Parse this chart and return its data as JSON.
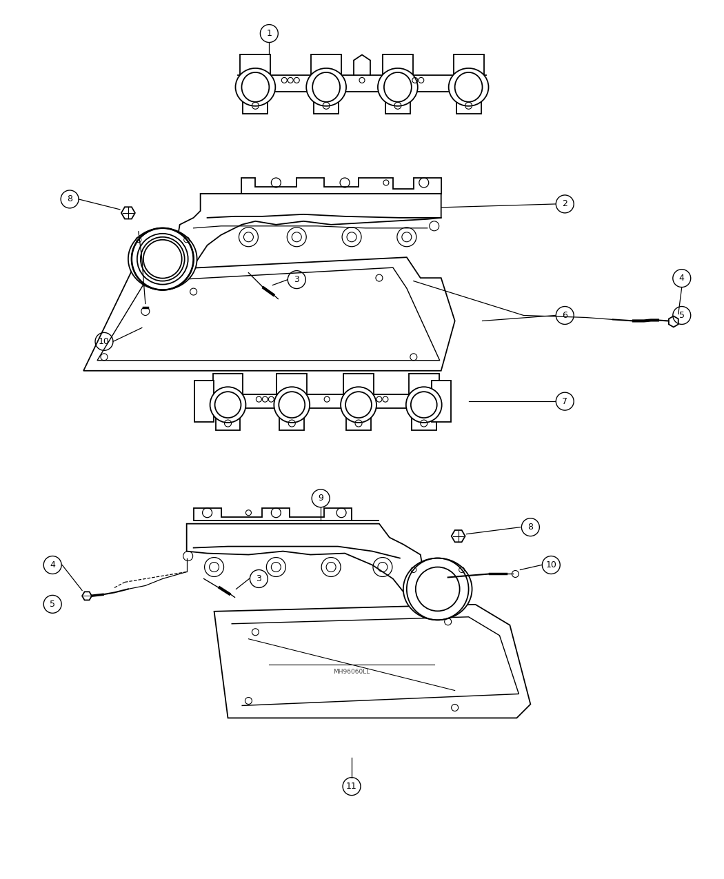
{
  "background_color": "#ffffff",
  "line_color": "#000000",
  "lw": 1.3
}
